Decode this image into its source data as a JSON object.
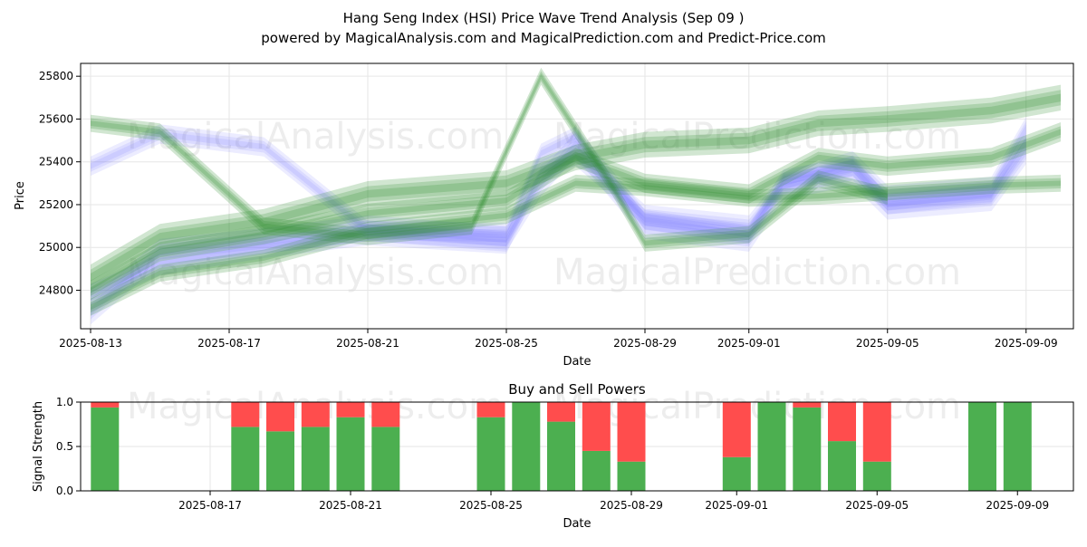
{
  "figure": {
    "title_line1": "Hang Seng Index (HSI) Price Wave Trend Analysis (Sep 09 )",
    "title_line2": "powered by MagicalAnalysis.com and MagicalPrediction.com and Predict-Price.com",
    "watermarks": [
      "MagicalAnalysis.com",
      "MagicalPrediction.com"
    ]
  },
  "colors": {
    "blue_wave": "#6a6aff",
    "green_wave": "#2e8b2e",
    "buy": "#4caf50",
    "sell": "#ff4d4d",
    "grid": "#e6e6e6"
  },
  "chart_data": [
    {
      "type": "area",
      "title": "",
      "xlabel": "Date",
      "ylabel": "Price",
      "x_ticks": [
        "2025-08-13",
        "2025-08-17",
        "2025-08-21",
        "2025-08-25",
        "2025-08-29",
        "2025-09-01",
        "2025-09-05",
        "2025-09-09"
      ],
      "y_ticks": [
        24800,
        25000,
        25200,
        25400,
        25600,
        25800
      ],
      "ylim": [
        24620,
        25860
      ],
      "xlim": [
        "2025-08-12",
        "2025-09-10"
      ],
      "grid": true,
      "series": [
        {
          "color": "blue",
          "x": [
            "2025-08-13",
            "2025-08-15",
            "2025-08-18",
            "2025-08-21",
            "2025-08-25",
            "2025-08-26",
            "2025-08-27",
            "2025-08-29",
            "2025-09-01",
            "2025-09-02",
            "2025-09-04",
            "2025-09-05",
            "2025-09-08",
            "2025-09-09"
          ],
          "y": [
            25380,
            25530,
            25470,
            25080,
            25070,
            25440,
            25520,
            25130,
            25060,
            25320,
            25380,
            25200,
            25250,
            25500
          ],
          "spread": 45
        },
        {
          "color": "blue",
          "x": [
            "2025-08-13",
            "2025-08-15",
            "2025-08-18",
            "2025-08-21",
            "2025-08-25",
            "2025-08-26",
            "2025-08-27",
            "2025-08-29",
            "2025-09-01",
            "2025-09-02",
            "2025-09-04",
            "2025-09-05",
            "2025-09-08",
            "2025-09-09"
          ],
          "y": [
            24700,
            24980,
            25030,
            25090,
            25040,
            25300,
            25480,
            25100,
            25040,
            25280,
            25350,
            25190,
            25230,
            25450
          ],
          "spread": 60
        },
        {
          "color": "blue",
          "x": [
            "2025-08-13",
            "2025-08-15",
            "2025-08-18",
            "2025-08-21",
            "2025-08-25",
            "2025-08-26",
            "2025-08-27",
            "2025-08-29",
            "2025-09-01",
            "2025-09-02",
            "2025-09-04",
            "2025-09-05",
            "2025-09-08",
            "2025-09-09"
          ],
          "y": [
            24780,
            24920,
            25000,
            25060,
            25020,
            25360,
            25430,
            25150,
            25100,
            25300,
            25400,
            25240,
            25280,
            25560
          ],
          "spread": 50
        },
        {
          "color": "green",
          "x": [
            "2025-08-13",
            "2025-08-15",
            "2025-08-18",
            "2025-08-21",
            "2025-08-25",
            "2025-08-27",
            "2025-08-29",
            "2025-09-01",
            "2025-09-03",
            "2025-09-05",
            "2025-09-08",
            "2025-09-10"
          ],
          "y": [
            24860,
            25050,
            25120,
            25250,
            25300,
            25420,
            25480,
            25500,
            25580,
            25600,
            25640,
            25700
          ],
          "spread": 60
        },
        {
          "color": "green",
          "x": [
            "2025-08-13",
            "2025-08-15",
            "2025-08-18",
            "2025-08-21",
            "2025-08-25",
            "2025-08-27",
            "2025-08-29",
            "2025-09-01",
            "2025-09-03",
            "2025-09-05",
            "2025-09-08",
            "2025-09-10"
          ],
          "y": [
            24800,
            24980,
            25060,
            25160,
            25220,
            25420,
            25300,
            25250,
            25420,
            25380,
            25420,
            25540
          ],
          "spread": 45
        },
        {
          "color": "green",
          "x": [
            "2025-08-13",
            "2025-08-15",
            "2025-08-18",
            "2025-08-21",
            "2025-08-25",
            "2025-08-27",
            "2025-08-29",
            "2025-09-01",
            "2025-09-03",
            "2025-09-05",
            "2025-09-08",
            "2025-09-10"
          ],
          "y": [
            24720,
            24880,
            24950,
            25080,
            25150,
            25300,
            25280,
            25230,
            25240,
            25260,
            25290,
            25300
          ],
          "spread": 40
        },
        {
          "color": "green",
          "x": [
            "2025-08-13",
            "2025-08-15",
            "2025-08-18",
            "2025-08-21",
            "2025-08-24",
            "2025-08-26",
            "2025-08-28",
            "2025-08-29",
            "2025-09-01",
            "2025-09-03",
            "2025-09-05"
          ],
          "y": [
            25580,
            25540,
            25100,
            25050,
            25100,
            25800,
            25300,
            25020,
            25060,
            25320,
            25240
          ],
          "spread": 40
        }
      ]
    },
    {
      "type": "bar",
      "title": "Buy and Sell Powers",
      "xlabel": "Date",
      "ylabel": "Signal Strength",
      "x_ticks": [
        "2025-08-17",
        "2025-08-21",
        "2025-08-25",
        "2025-08-29",
        "2025-09-01",
        "2025-09-05",
        "2025-09-09"
      ],
      "y_ticks": [
        "0.0",
        "0.5",
        "1.0"
      ],
      "ylim": [
        0,
        1
      ],
      "categories": [
        "2025-08-14",
        "2025-08-18",
        "2025-08-19",
        "2025-08-20",
        "2025-08-21",
        "2025-08-22",
        "2025-08-25",
        "2025-08-26",
        "2025-08-27",
        "2025-08-28",
        "2025-08-29",
        "2025-09-01",
        "2025-09-02",
        "2025-09-03",
        "2025-09-04",
        "2025-09-05",
        "2025-09-08",
        "2025-09-09"
      ],
      "series": [
        {
          "name": "buy",
          "values": [
            0.94,
            0.72,
            0.67,
            0.72,
            0.83,
            0.72,
            0.83,
            1.0,
            0.78,
            0.45,
            0.33,
            0.38,
            1.0,
            0.94,
            0.56,
            0.33,
            1.0,
            1.0
          ]
        },
        {
          "name": "sell",
          "values": [
            0.06,
            0.28,
            0.33,
            0.28,
            0.17,
            0.28,
            0.17,
            0.0,
            0.22,
            0.55,
            0.67,
            0.62,
            0.0,
            0.06,
            0.44,
            0.67,
            0.0,
            0.0
          ]
        }
      ]
    }
  ]
}
